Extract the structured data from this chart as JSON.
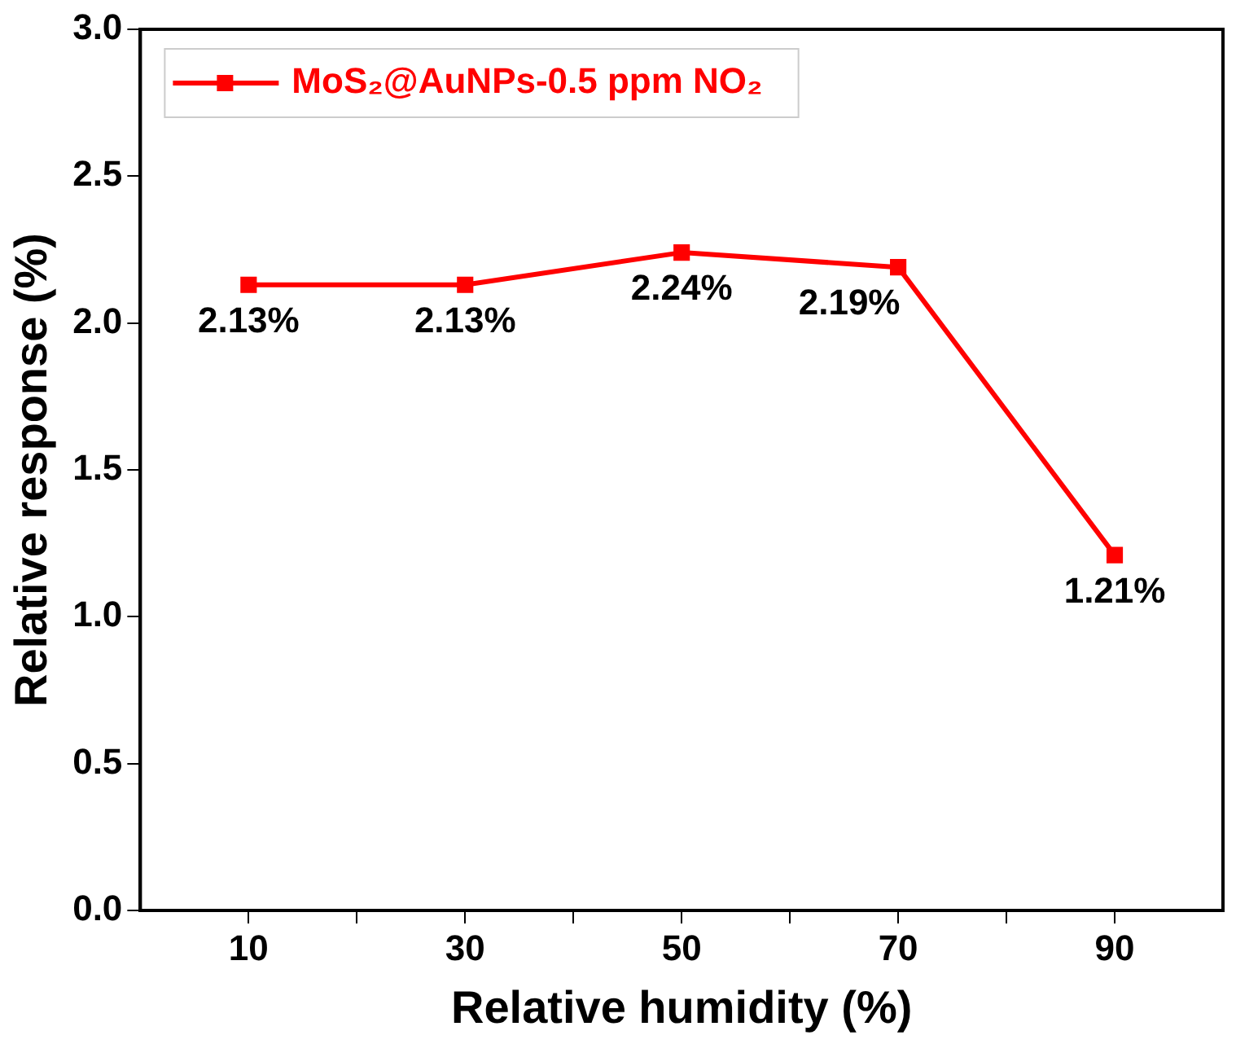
{
  "chart_data": {
    "type": "line",
    "xlabel": "Relative humidity (%)",
    "ylabel": "Relative response (%)",
    "x": [
      10,
      30,
      50,
      70,
      90
    ],
    "series": [
      {
        "name": "MoS₂@AuNPs-0.5 ppm NO₂",
        "color": "#ff0000",
        "values": [
          2.13,
          2.13,
          2.24,
          2.19,
          1.21
        ],
        "value_labels": [
          "2.13%",
          "2.13%",
          "2.24%",
          "2.19%",
          "1.21%"
        ]
      }
    ],
    "xlim": [
      0,
      100
    ],
    "xticks": [
      10,
      {
        "value": 20,
        "label": null
      },
      30,
      {
        "value": 40,
        "label": null
      },
      50,
      {
        "value": 60,
        "label": null
      },
      70,
      {
        "value": 80,
        "label": null
      },
      90
    ],
    "ylim": [
      0,
      3
    ],
    "yticks": [
      {
        "value": 0,
        "label": "0.0"
      },
      0.5,
      {
        "value": 1,
        "label": "1.0"
      },
      1.5,
      {
        "value": 2,
        "label": "2.0"
      },
      2.5,
      {
        "value": 3,
        "label": "3.0"
      }
    ],
    "grid": false,
    "legend": "top left",
    "marker": "square",
    "line_style": "solid"
  }
}
